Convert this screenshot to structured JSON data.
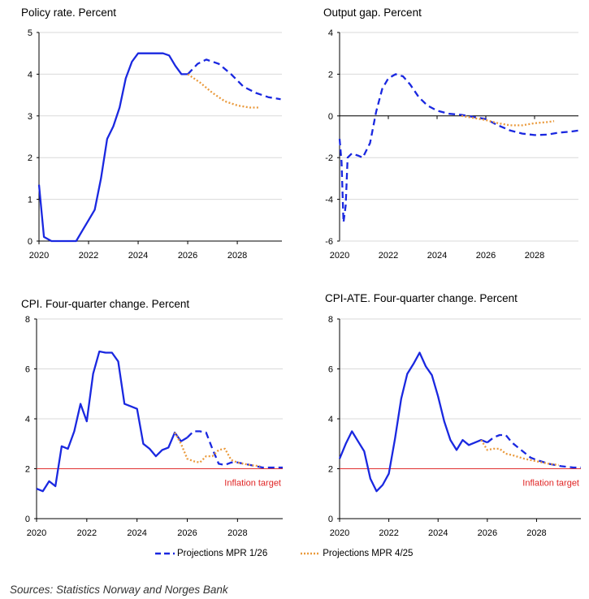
{
  "colors": {
    "blue": "#1a28e0",
    "orange": "#ea9a3c",
    "red": "#e03030",
    "axis": "#000000",
    "grid": "#d9d9d9"
  },
  "legend": {
    "mpr126": "Projections MPR 1/26",
    "mpr425": "Projections MPR 4/25"
  },
  "source": "Sources: Statistics Norway and Norges Bank",
  "chart_data": [
    {
      "type": "line",
      "title": "Policy rate. Percent",
      "xlim": [
        2020,
        2029.8
      ],
      "ylim": [
        0,
        5
      ],
      "yticks": [
        0,
        1,
        2,
        3,
        4,
        5
      ],
      "xticks": [
        2020,
        2022,
        2024,
        2026,
        2028
      ],
      "zero_line": false,
      "series": [
        {
          "name": "Policy rate",
          "style": "solid",
          "color": "blue",
          "points": [
            [
              2020,
              1.35
            ],
            [
              2020.2,
              0.1
            ],
            [
              2020.5,
              0
            ],
            [
              2021.5,
              0
            ],
            [
              2021.75,
              0.25
            ],
            [
              2022.0,
              0.5
            ],
            [
              2022.25,
              0.75
            ],
            [
              2022.5,
              1.5
            ],
            [
              2022.75,
              2.45
            ],
            [
              2023.0,
              2.75
            ],
            [
              2023.25,
              3.2
            ],
            [
              2023.5,
              3.9
            ],
            [
              2023.75,
              4.3
            ],
            [
              2024.0,
              4.5
            ],
            [
              2024.5,
              4.5
            ],
            [
              2025.0,
              4.5
            ],
            [
              2025.25,
              4.45
            ],
            [
              2025.5,
              4.2
            ],
            [
              2025.75,
              4.0
            ],
            [
              2026.0,
              4.0
            ]
          ]
        },
        {
          "name": "Projections MPR 1/26",
          "style": "dashed",
          "color": "blue",
          "points": [
            [
              2026.0,
              4.0
            ],
            [
              2026.4,
              4.25
            ],
            [
              2026.75,
              4.35
            ],
            [
              2027.25,
              4.25
            ],
            [
              2027.75,
              4.0
            ],
            [
              2028.25,
              3.7
            ],
            [
              2028.75,
              3.55
            ],
            [
              2029.25,
              3.45
            ],
            [
              2029.75,
              3.4
            ]
          ]
        },
        {
          "name": "Projections MPR 4/25",
          "style": "dotted",
          "color": "orange",
          "points": [
            [
              2026.0,
              4.0
            ],
            [
              2026.5,
              3.8
            ],
            [
              2027.0,
              3.55
            ],
            [
              2027.5,
              3.35
            ],
            [
              2028.0,
              3.25
            ],
            [
              2028.5,
              3.2
            ],
            [
              2028.9,
              3.2
            ]
          ]
        }
      ]
    },
    {
      "type": "line",
      "title": "Output gap. Percent",
      "xlim": [
        2020,
        2029.8
      ],
      "ylim": [
        -6,
        4
      ],
      "yticks": [
        -6,
        -4,
        -2,
        0,
        2,
        4
      ],
      "xticks": [
        2020,
        2022,
        2024,
        2026,
        2028
      ],
      "zero_line": true,
      "series": [
        {
          "name": "Output gap",
          "style": "dashed",
          "color": "blue",
          "points": [
            [
              2020,
              -1.1
            ],
            [
              2020.08,
              -2.2
            ],
            [
              2020.16,
              -5.1
            ],
            [
              2020.25,
              -4.3
            ],
            [
              2020.33,
              -2.0
            ],
            [
              2020.5,
              -1.8
            ],
            [
              2020.75,
              -1.9
            ],
            [
              2020.95,
              -2.0
            ],
            [
              2021.25,
              -1.3
            ],
            [
              2021.5,
              0.2
            ],
            [
              2021.75,
              1.3
            ],
            [
              2022.0,
              1.8
            ],
            [
              2022.3,
              2.0
            ],
            [
              2022.6,
              1.9
            ],
            [
              2022.9,
              1.5
            ],
            [
              2023.25,
              0.9
            ],
            [
              2023.6,
              0.5
            ],
            [
              2024.0,
              0.25
            ],
            [
              2024.5,
              0.1
            ],
            [
              2025.0,
              0.05
            ],
            [
              2025.5,
              -0.05
            ],
            [
              2026.0,
              -0.15
            ],
            [
              2026.5,
              -0.45
            ],
            [
              2027.0,
              -0.7
            ],
            [
              2027.5,
              -0.85
            ],
            [
              2028.0,
              -0.92
            ],
            [
              2028.5,
              -0.9
            ],
            [
              2029.0,
              -0.8
            ],
            [
              2029.5,
              -0.75
            ],
            [
              2029.8,
              -0.7
            ]
          ]
        },
        {
          "name": "Projections MPR 4/25",
          "style": "dotted",
          "color": "orange",
          "points": [
            [
              2025.0,
              0.0
            ],
            [
              2025.5,
              -0.1
            ],
            [
              2026.0,
              -0.2
            ],
            [
              2026.5,
              -0.35
            ],
            [
              2027.0,
              -0.45
            ],
            [
              2027.5,
              -0.45
            ],
            [
              2028.0,
              -0.35
            ],
            [
              2028.5,
              -0.3
            ],
            [
              2028.8,
              -0.25
            ]
          ]
        }
      ]
    },
    {
      "type": "line",
      "title": "CPI. Four-quarter change. Percent",
      "xlim": [
        2020,
        2029.8
      ],
      "ylim": [
        0,
        8
      ],
      "yticks": [
        0,
        2,
        4,
        6,
        8
      ],
      "xticks": [
        2020,
        2022,
        2024,
        2026,
        2028
      ],
      "zero_line": false,
      "target": {
        "value": 2,
        "label": "Inflation target"
      },
      "series": [
        {
          "name": "CPI",
          "style": "solid",
          "color": "blue",
          "points": [
            [
              2020.0,
              1.2
            ],
            [
              2020.25,
              1.1
            ],
            [
              2020.5,
              1.5
            ],
            [
              2020.75,
              1.3
            ],
            [
              2021.0,
              2.9
            ],
            [
              2021.25,
              2.8
            ],
            [
              2021.5,
              3.5
            ],
            [
              2021.75,
              4.6
            ],
            [
              2022.0,
              3.9
            ],
            [
              2022.25,
              5.8
            ],
            [
              2022.5,
              6.7
            ],
            [
              2022.75,
              6.65
            ],
            [
              2023.0,
              6.65
            ],
            [
              2023.25,
              6.3
            ],
            [
              2023.5,
              4.6
            ],
            [
              2023.75,
              4.5
            ],
            [
              2024.0,
              4.4
            ],
            [
              2024.25,
              3.0
            ],
            [
              2024.5,
              2.8
            ],
            [
              2024.75,
              2.5
            ],
            [
              2025.0,
              2.75
            ],
            [
              2025.25,
              2.85
            ],
            [
              2025.5,
              3.45
            ],
            [
              2025.75,
              3.1
            ],
            [
              2026.0,
              3.25
            ]
          ]
        },
        {
          "name": "Projections MPR 1/26",
          "style": "dashed",
          "color": "blue",
          "points": [
            [
              2026.0,
              3.25
            ],
            [
              2026.25,
              3.5
            ],
            [
              2026.5,
              3.5
            ],
            [
              2026.75,
              3.45
            ],
            [
              2027.0,
              2.8
            ],
            [
              2027.25,
              2.2
            ],
            [
              2027.5,
              2.15
            ],
            [
              2027.75,
              2.25
            ],
            [
              2028.0,
              2.25
            ],
            [
              2028.5,
              2.15
            ],
            [
              2029.0,
              2.05
            ],
            [
              2029.5,
              2.05
            ],
            [
              2029.8,
              2.05
            ]
          ]
        },
        {
          "name": "Projections MPR 4/25",
          "style": "dotted",
          "color": "orange",
          "points": [
            [
              2025.5,
              3.45
            ],
            [
              2025.75,
              3.0
            ],
            [
              2026.0,
              2.4
            ],
            [
              2026.25,
              2.3
            ],
            [
              2026.5,
              2.25
            ],
            [
              2026.75,
              2.5
            ],
            [
              2027.0,
              2.5
            ],
            [
              2027.25,
              2.75
            ],
            [
              2027.5,
              2.8
            ],
            [
              2027.75,
              2.35
            ],
            [
              2028.0,
              2.25
            ],
            [
              2028.5,
              2.15
            ],
            [
              2028.9,
              2.1
            ]
          ]
        }
      ]
    },
    {
      "type": "line",
      "title": "CPI-ATE. Four-quarter change. Percent",
      "xlim": [
        2020,
        2029.8
      ],
      "ylim": [
        0,
        8
      ],
      "yticks": [
        0,
        2,
        4,
        6,
        8
      ],
      "xticks": [
        2020,
        2022,
        2024,
        2026,
        2028
      ],
      "zero_line": false,
      "target": {
        "value": 2,
        "label": "Inflation target"
      },
      "series": [
        {
          "name": "CPI-ATE",
          "style": "solid",
          "color": "blue",
          "points": [
            [
              2020.0,
              2.4
            ],
            [
              2020.25,
              3.0
            ],
            [
              2020.5,
              3.5
            ],
            [
              2020.75,
              3.1
            ],
            [
              2021.0,
              2.7
            ],
            [
              2021.25,
              1.6
            ],
            [
              2021.5,
              1.1
            ],
            [
              2021.75,
              1.35
            ],
            [
              2022.0,
              1.8
            ],
            [
              2022.25,
              3.2
            ],
            [
              2022.5,
              4.8
            ],
            [
              2022.75,
              5.8
            ],
            [
              2023.0,
              6.2
            ],
            [
              2023.25,
              6.65
            ],
            [
              2023.5,
              6.1
            ],
            [
              2023.75,
              5.75
            ],
            [
              2024.0,
              4.9
            ],
            [
              2024.25,
              3.9
            ],
            [
              2024.5,
              3.15
            ],
            [
              2024.75,
              2.75
            ],
            [
              2025.0,
              3.15
            ],
            [
              2025.25,
              2.95
            ],
            [
              2025.5,
              3.05
            ],
            [
              2025.75,
              3.15
            ],
            [
              2026.0,
              3.05
            ]
          ]
        },
        {
          "name": "Projections MPR 1/26",
          "style": "dashed",
          "color": "blue",
          "points": [
            [
              2026.0,
              3.05
            ],
            [
              2026.25,
              3.25
            ],
            [
              2026.5,
              3.35
            ],
            [
              2026.75,
              3.35
            ],
            [
              2027.0,
              3.05
            ],
            [
              2027.25,
              2.85
            ],
            [
              2027.5,
              2.65
            ],
            [
              2027.75,
              2.45
            ],
            [
              2028.0,
              2.35
            ],
            [
              2028.5,
              2.2
            ],
            [
              2029.0,
              2.1
            ],
            [
              2029.5,
              2.05
            ],
            [
              2029.8,
              2.05
            ]
          ]
        },
        {
          "name": "Projections MPR 4/25",
          "style": "dotted",
          "color": "orange",
          "points": [
            [
              2025.75,
              3.15
            ],
            [
              2026.0,
              2.75
            ],
            [
              2026.25,
              2.8
            ],
            [
              2026.5,
              2.8
            ],
            [
              2026.75,
              2.6
            ],
            [
              2027.0,
              2.55
            ],
            [
              2027.5,
              2.4
            ],
            [
              2028.0,
              2.3
            ],
            [
              2028.5,
              2.2
            ],
            [
              2028.9,
              2.15
            ]
          ]
        }
      ]
    }
  ]
}
